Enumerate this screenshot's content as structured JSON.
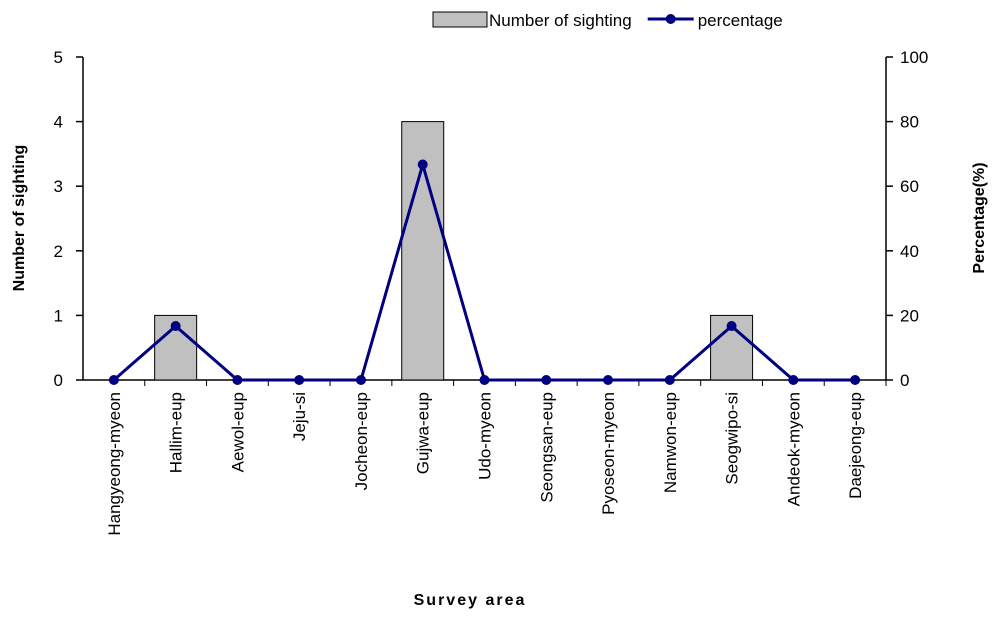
{
  "chart_data": {
    "type": "bar",
    "x_label": "Survey area",
    "y_label": "Number of sighting",
    "y2_label": "Percentage(%)",
    "categories": [
      "Hangyeong-myeon",
      "Hallim-eup",
      "Aewol-eup",
      "Jeju-si",
      "Jocheon-eup",
      "Gujwa-eup",
      "Udo-myeon",
      "Seongsan-eup",
      "Pyoseon-myeon",
      "Namwon-eup",
      "Seogwipo-si",
      "Andeok-myeon",
      "Daejeong-eup"
    ],
    "series": [
      {
        "name": "Number of sighting",
        "type": "bar",
        "color": "#c0c0c0",
        "values": [
          0,
          1,
          0,
          0,
          0,
          4,
          0,
          0,
          0,
          0,
          1,
          0,
          0
        ]
      },
      {
        "name": "percentage",
        "type": "line",
        "axis": "y2",
        "color": "#000080",
        "values": [
          0,
          16.7,
          0,
          0,
          0,
          66.7,
          0,
          0,
          0,
          0,
          16.7,
          0,
          0
        ]
      }
    ],
    "ylim": [
      0,
      5
    ],
    "yticks": [
      0,
      1,
      2,
      3,
      4,
      5
    ],
    "y2lim": [
      0,
      100
    ],
    "y2ticks": [
      0,
      20,
      40,
      60,
      80,
      100
    ],
    "legend": "top-right",
    "grid": false
  }
}
